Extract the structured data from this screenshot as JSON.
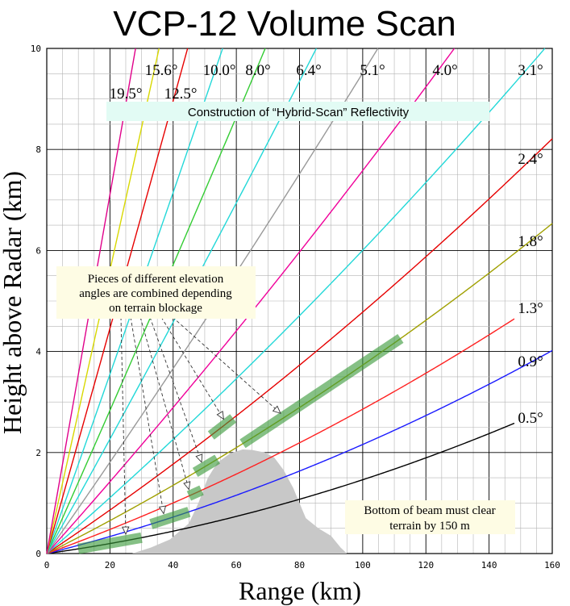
{
  "chart_data": {
    "type": "line",
    "title": "VCP-12 Volume Scan",
    "xlabel": "Range (km)",
    "ylabel": "Height above Radar (km)",
    "xlim": [
      0,
      160
    ],
    "ylim": [
      0,
      10
    ],
    "x_ticks": [
      "0",
      "20",
      "40",
      "60",
      "80",
      "100",
      "120",
      "140",
      "160"
    ],
    "y_ticks": [
      "0",
      "2",
      "4",
      "6",
      "8",
      "10"
    ],
    "grid": true,
    "series": [
      {
        "name": "0.5°",
        "elevation": 0.5,
        "color": "#000000",
        "x_end": 148
      },
      {
        "name": "0.9°",
        "elevation": 0.9,
        "color": "#1a1aff",
        "x_end": 160
      },
      {
        "name": "1.3°",
        "elevation": 1.3,
        "color": "#ff2020",
        "x_end": 148
      },
      {
        "name": "1.8°",
        "elevation": 1.8,
        "color": "#a0a000",
        "x_end": 160
      },
      {
        "name": "2.4°",
        "elevation": 2.4,
        "color": "#e60000",
        "x_end": 160
      },
      {
        "name": "3.1°",
        "elevation": 3.1,
        "color": "#22d8d8",
        "x_end": 160
      },
      {
        "name": "4.0°",
        "elevation": 4.0,
        "color": "#f0009a",
        "x_end": 160
      },
      {
        "name": "5.1°",
        "elevation": 5.1,
        "color": "#999999",
        "x_end": 160
      },
      {
        "name": "6.4°",
        "elevation": 6.4,
        "color": "#22d8d8",
        "x_end": 160
      },
      {
        "name": "8.0°",
        "elevation": 8.0,
        "color": "#33cc33",
        "x_end": 160
      },
      {
        "name": "10.0°",
        "elevation": 10.0,
        "color": "#22d8d8",
        "x_end": 160
      },
      {
        "name": "12.5°",
        "elevation": 12.5,
        "color": "#e60000",
        "x_end": 160
      },
      {
        "name": "15.6°",
        "elevation": 15.6,
        "color": "#d8d800",
        "x_end": 160
      },
      {
        "name": "19.5°",
        "elevation": 19.5,
        "color": "#e0008a",
        "x_end": 160
      }
    ],
    "terrain": {
      "color": "#c8c8c8",
      "points": [
        [
          27,
          0
        ],
        [
          33,
          0.12
        ],
        [
          39,
          0.28
        ],
        [
          45,
          0.6
        ],
        [
          48,
          1.0
        ],
        [
          51,
          1.5
        ],
        [
          54,
          1.8
        ],
        [
          58,
          1.98
        ],
        [
          62,
          2.06
        ],
        [
          65,
          2.05
        ],
        [
          69,
          2.0
        ],
        [
          72,
          1.9
        ],
        [
          75,
          1.65
        ],
        [
          78,
          1.3
        ],
        [
          80,
          1.0
        ],
        [
          82,
          0.7
        ],
        [
          86,
          0.5
        ],
        [
          90,
          0.35
        ],
        [
          93,
          0.12
        ],
        [
          95,
          0
        ]
      ]
    },
    "hybrid_segments": [
      {
        "elevation": 0.5,
        "x": [
          10,
          30
        ]
      },
      {
        "elevation": 0.9,
        "x": [
          33,
          45
        ]
      },
      {
        "elevation": 1.3,
        "x": [
          45,
          49
        ]
      },
      {
        "elevation": 1.8,
        "x": [
          47,
          54
        ]
      },
      {
        "elevation": 2.4,
        "x": [
          52,
          59
        ]
      },
      {
        "elevation": 1.8,
        "x": [
          62,
          112
        ]
      }
    ],
    "annotations": {
      "banner": "Construction of “Hybrid-Scan” Reflectivity",
      "pieces_note": [
        "Pieces of different elevation",
        "angles are combined depending",
        "on terrain blockage"
      ],
      "beam_note": [
        "Bottom of beam must clear",
        "terrain by 150 m"
      ]
    },
    "arrow_targets": [
      {
        "elevation": 0.5,
        "x": 25
      },
      {
        "elevation": 0.9,
        "x": 37
      },
      {
        "elevation": 1.3,
        "x": 45
      },
      {
        "elevation": 1.8,
        "x": 49
      },
      {
        "elevation": 2.4,
        "x": 56
      },
      {
        "elevation": 1.8,
        "x": 74
      }
    ]
  }
}
